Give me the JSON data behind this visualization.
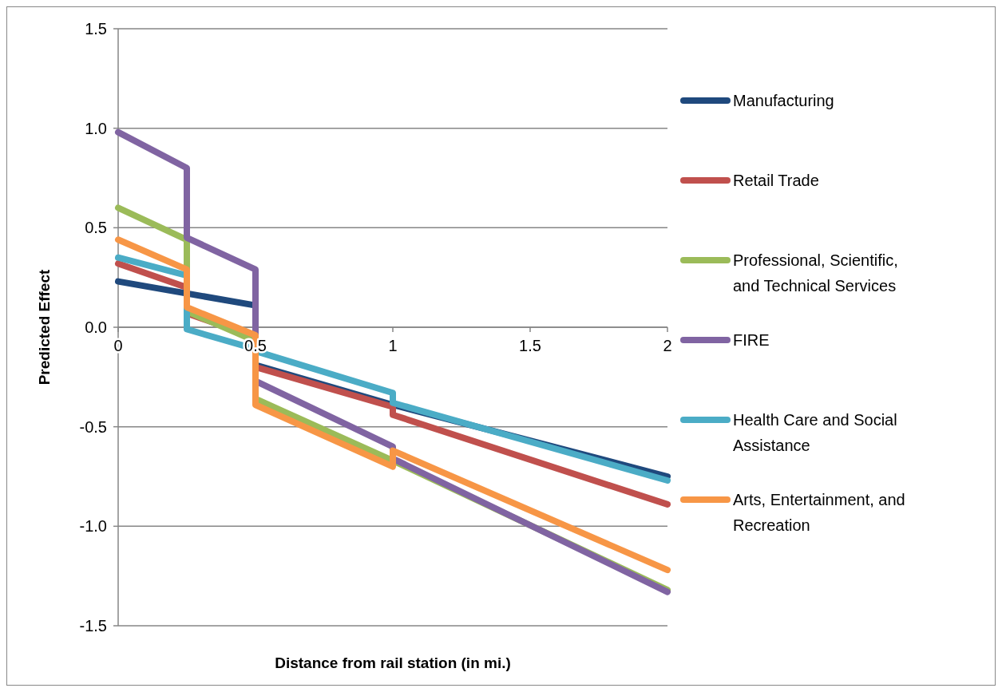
{
  "chart_data": {
    "type": "line",
    "xlabel": "Distance from rail station (in mi.)",
    "ylabel": "Predicted Effect",
    "xlim": [
      0,
      2
    ],
    "xticks": [
      0,
      0.5,
      1,
      1.5,
      2
    ],
    "ylim": [
      -1.5,
      1.5
    ],
    "yticks": [
      {
        "value": -1.5,
        "label": "-1.5"
      },
      {
        "value": -1,
        "label": "-1.0"
      },
      {
        "value": -0.5,
        "label": "-0.5"
      },
      {
        "value": 0,
        "label": "0.0"
      },
      {
        "value": 0.5,
        "label": "0.5"
      },
      {
        "value": 1,
        "label": "1.0"
      },
      {
        "value": 1.5,
        "label": "1.5"
      }
    ],
    "grid": "y",
    "legend": "right",
    "marker": "none",
    "line_style": "solid",
    "x": [
      0,
      0.25,
      0.25,
      0.5,
      0.5,
      1,
      1,
      2
    ],
    "series": [
      {
        "name": "Manufacturing",
        "color": "#1f497d",
        "values": [
          0.23,
          0.17,
          0.17,
          0.11,
          -0.19,
          -0.39,
          -0.39,
          -0.75
        ]
      },
      {
        "name": "Retail Trade",
        "color": "#c0504d",
        "values": [
          0.32,
          0.2,
          0.07,
          -0.05,
          -0.2,
          -0.4,
          -0.44,
          -0.89
        ]
      },
      {
        "name": "Professional, Scientific, and Technical Services",
        "color": "#9bbb59",
        "values": [
          0.6,
          0.44,
          0.08,
          -0.07,
          -0.36,
          -0.67,
          -0.67,
          -1.32
        ]
      },
      {
        "name": "FIRE",
        "color": "#8064a2",
        "values": [
          0.98,
          0.8,
          0.45,
          0.29,
          -0.27,
          -0.6,
          -0.66,
          -1.33
        ]
      },
      {
        "name": "Health Care and Social Assistance",
        "color": "#4bacc6",
        "values": [
          0.35,
          0.26,
          -0.01,
          -0.11,
          -0.12,
          -0.33,
          -0.38,
          -0.77
        ]
      },
      {
        "name": "Arts, Entertainment, and Recreation",
        "color": "#f79646",
        "values": [
          0.44,
          0.29,
          0.1,
          -0.04,
          -0.39,
          -0.7,
          -0.62,
          -1.22
        ]
      }
    ]
  }
}
